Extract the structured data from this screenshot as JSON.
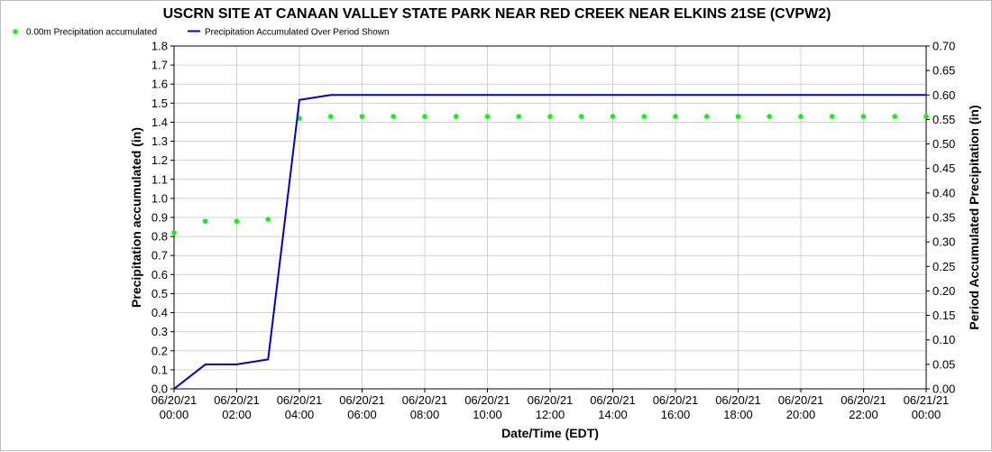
{
  "chart_data": {
    "type": "line",
    "title": "USCRN SITE AT CANAAN VALLEY STATE PARK NEAR RED CREEK NEAR ELKINS 21SE (CVPW2)",
    "xlabel": "Date/Time (EDT)",
    "ylabel_left": "Precipitation accumulated (in)",
    "ylabel_right": "Period Accumulated Precipitation (in)",
    "ylim_left": [
      0,
      1.8
    ],
    "ylim_right": [
      0,
      0.7
    ],
    "yticks_left": [
      "0.0",
      "0.1",
      "0.2",
      "0.3",
      "0.4",
      "0.5",
      "0.6",
      "0.7",
      "0.8",
      "0.9",
      "1.0",
      "1.1",
      "1.2",
      "1.3",
      "1.4",
      "1.5",
      "1.6",
      "1.7",
      "1.8"
    ],
    "yticks_right": [
      "0.00",
      "0.05",
      "0.10",
      "0.15",
      "0.20",
      "0.25",
      "0.30",
      "0.35",
      "0.40",
      "0.45",
      "0.50",
      "0.55",
      "0.60",
      "0.65",
      "0.70"
    ],
    "xlim_hours": [
      0,
      24
    ],
    "xticks": [
      {
        "date": "06/20/21",
        "time": "00:00"
      },
      {
        "date": "06/20/21",
        "time": "02:00"
      },
      {
        "date": "06/20/21",
        "time": "04:00"
      },
      {
        "date": "06/20/21",
        "time": "06:00"
      },
      {
        "date": "06/20/21",
        "time": "08:00"
      },
      {
        "date": "06/20/21",
        "time": "10:00"
      },
      {
        "date": "06/20/21",
        "time": "12:00"
      },
      {
        "date": "06/20/21",
        "time": "14:00"
      },
      {
        "date": "06/20/21",
        "time": "16:00"
      },
      {
        "date": "06/20/21",
        "time": "18:00"
      },
      {
        "date": "06/20/21",
        "time": "20:00"
      },
      {
        "date": "06/20/21",
        "time": "22:00"
      },
      {
        "date": "06/21/21",
        "time": "00:00"
      }
    ],
    "grid": true,
    "legend_position": "top-left",
    "series": [
      {
        "name": "0.00m Precipitation accumulated",
        "kind": "scatter",
        "axis": "left",
        "color": "#00ff00",
        "x": [
          0,
          1,
          2,
          3,
          4,
          5,
          6,
          7,
          8,
          9,
          10,
          11,
          12,
          13,
          14,
          15,
          16,
          17,
          18,
          19,
          20,
          21,
          22,
          23,
          24
        ],
        "values": [
          0.82,
          0.88,
          0.88,
          0.89,
          1.42,
          1.43,
          1.43,
          1.43,
          1.43,
          1.43,
          1.43,
          1.43,
          1.43,
          1.43,
          1.43,
          1.43,
          1.43,
          1.43,
          1.43,
          1.43,
          1.43,
          1.43,
          1.43,
          1.43,
          1.43
        ]
      },
      {
        "name": "Precipitation Accumulated Over Period Shown",
        "kind": "line",
        "axis": "right",
        "color": "#0000cc",
        "x": [
          0,
          1,
          2,
          3,
          4,
          5,
          6,
          7,
          8,
          9,
          10,
          11,
          12,
          13,
          14,
          15,
          16,
          17,
          18,
          19,
          20,
          21,
          22,
          23,
          24
        ],
        "values": [
          0.0,
          0.05,
          0.05,
          0.06,
          0.59,
          0.6,
          0.6,
          0.6,
          0.6,
          0.6,
          0.6,
          0.6,
          0.6,
          0.6,
          0.6,
          0.6,
          0.6,
          0.6,
          0.6,
          0.6,
          0.6,
          0.6,
          0.6,
          0.6,
          0.6
        ]
      }
    ]
  }
}
